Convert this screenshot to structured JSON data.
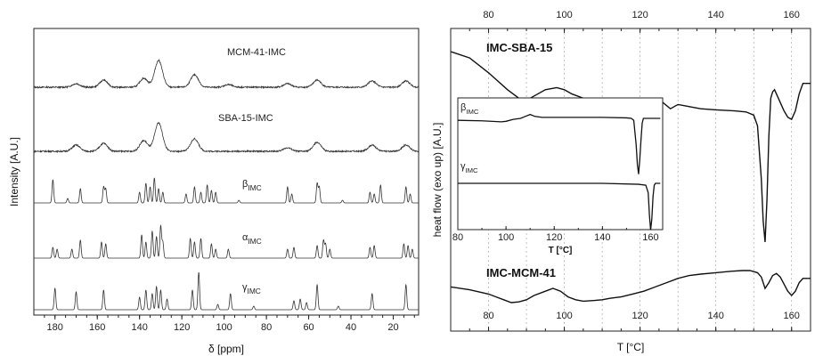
{
  "chart_data": [
    {
      "type": "line",
      "panel": "left",
      "xlabel": "δ [ppm]",
      "ylabel": "Intensity [A.U.]",
      "xlim": [
        190,
        8
      ],
      "x_reversed": true,
      "x_ticks": [
        180,
        160,
        140,
        120,
        100,
        80,
        60,
        40,
        20
      ],
      "series": [
        {
          "name": "MCM-41-IMC",
          "label_plain": true,
          "peaks": [
            [
              170,
              4
            ],
            [
              157,
              8
            ],
            [
              138,
              10
            ],
            [
              131,
              30
            ],
            [
              114,
              14
            ],
            [
              98,
              3
            ],
            [
              70,
              4
            ],
            [
              56,
              8
            ],
            [
              30,
              7
            ],
            [
              14,
              7
            ]
          ]
        },
        {
          "name": "SBA-15-IMC",
          "label_plain": true,
          "peaks": [
            [
              170,
              7
            ],
            [
              157,
              9
            ],
            [
              138,
              12
            ],
            [
              131,
              32
            ],
            [
              114,
              14
            ],
            [
              70,
              4
            ],
            [
              56,
              10
            ],
            [
              30,
              7
            ],
            [
              14,
              7
            ]
          ]
        },
        {
          "name": "β",
          "sub": "IMC",
          "peaks": [
            [
              181,
              26
            ],
            [
              174,
              5
            ],
            [
              168,
              16
            ],
            [
              157,
              18
            ],
            [
              156,
              16
            ],
            [
              140,
              12
            ],
            [
              137,
              22
            ],
            [
              135,
              18
            ],
            [
              133,
              28
            ],
            [
              131,
              16
            ],
            [
              129,
              12
            ],
            [
              118,
              10
            ],
            [
              114,
              18
            ],
            [
              111,
              12
            ],
            [
              108,
              20
            ],
            [
              106,
              14
            ],
            [
              104,
              12
            ],
            [
              93,
              3
            ],
            [
              70,
              18
            ],
            [
              68,
              10
            ],
            [
              56,
              22
            ],
            [
              55,
              18
            ],
            [
              44,
              3
            ],
            [
              31,
              12
            ],
            [
              29,
              10
            ],
            [
              26,
              20
            ],
            [
              14,
              18
            ],
            [
              12,
              10
            ]
          ]
        },
        {
          "name": "α",
          "sub": "IMC",
          "peaks": [
            [
              181,
              12
            ],
            [
              179,
              10
            ],
            [
              172,
              10
            ],
            [
              168,
              20
            ],
            [
              158,
              18
            ],
            [
              156,
              16
            ],
            [
              139,
              26
            ],
            [
              137,
              18
            ],
            [
              134,
              30
            ],
            [
              132,
              24
            ],
            [
              130,
              36
            ],
            [
              129,
              18
            ],
            [
              116,
              22
            ],
            [
              114,
              18
            ],
            [
              111,
              22
            ],
            [
              106,
              16
            ],
            [
              104,
              10
            ],
            [
              98,
              10
            ],
            [
              70,
              10
            ],
            [
              67,
              12
            ],
            [
              56,
              14
            ],
            [
              53,
              20
            ],
            [
              52,
              16
            ],
            [
              50,
              10
            ],
            [
              31,
              12
            ],
            [
              29,
              14
            ],
            [
              15,
              16
            ],
            [
              13,
              14
            ],
            [
              11,
              10
            ]
          ]
        },
        {
          "name": "γ",
          "sub": "IMC",
          "peaks": [
            [
              180,
              24
            ],
            [
              170,
              20
            ],
            [
              157,
              22
            ],
            [
              140,
              14
            ],
            [
              137,
              22
            ],
            [
              134,
              18
            ],
            [
              132,
              26
            ],
            [
              130,
              22
            ],
            [
              127,
              12
            ],
            [
              115,
              22
            ],
            [
              112,
              42
            ],
            [
              103,
              6
            ],
            [
              97,
              18
            ],
            [
              86,
              4
            ],
            [
              67,
              10
            ],
            [
              64,
              12
            ],
            [
              61,
              8
            ],
            [
              56,
              28
            ],
            [
              46,
              4
            ],
            [
              30,
              18
            ],
            [
              14,
              28
            ]
          ]
        }
      ]
    },
    {
      "type": "line",
      "panel": "right",
      "xlabel": "T [°C]",
      "ylabel": "heat flow (exo up) [A.U.]",
      "xlim": [
        70,
        165
      ],
      "x_ticks": [
        80,
        100,
        120,
        140,
        160
      ],
      "grid": "vertical dotted",
      "series": [
        {
          "name": "IMC-SBA-15",
          "x": [
            70,
            75,
            80,
            85,
            88,
            90,
            92,
            95,
            98,
            100,
            102,
            105,
            110,
            115,
            120,
            124,
            126,
            128,
            130,
            133,
            136,
            140,
            145,
            148,
            150,
            151,
            152,
            152.5,
            153,
            153.5,
            154,
            154.5,
            155,
            155.5,
            156,
            157,
            158,
            159,
            160,
            161,
            162,
            163,
            165
          ],
          "y": [
            90,
            87,
            80,
            72,
            68,
            67,
            69,
            72,
            73,
            72,
            70,
            68,
            67,
            67,
            67,
            67.5,
            66,
            63,
            65,
            64,
            63,
            62.5,
            62,
            61.5,
            60,
            55,
            30,
            10,
            0,
            20,
            50,
            68,
            71,
            72,
            70,
            66,
            62,
            59,
            58,
            62,
            70,
            75,
            75
          ]
        },
        {
          "name": "IMC-MCM-41",
          "x": [
            70,
            75,
            80,
            82,
            84,
            86,
            88,
            90,
            92,
            95,
            97,
            99,
            101,
            103,
            105,
            108,
            110,
            112,
            115,
            118,
            121,
            124,
            127,
            130,
            133,
            136,
            140,
            144,
            147,
            149,
            151,
            152,
            153,
            154,
            155,
            156,
            157,
            158,
            159,
            160,
            161,
            162,
            163,
            165
          ],
          "y": [
            48,
            46,
            43,
            41,
            39,
            37,
            37.5,
            39,
            42,
            45,
            47,
            45,
            41,
            39,
            38,
            38.5,
            39,
            40,
            41,
            43,
            45,
            48,
            51,
            54,
            56,
            57,
            58,
            59,
            59.5,
            59.5,
            58,
            55,
            47,
            51,
            56,
            57.5,
            55,
            50,
            45,
            42,
            45,
            51,
            54,
            54
          ]
        }
      ],
      "inset": {
        "xlim": [
          80,
          165
        ],
        "x_ticks": [
          80,
          100,
          120,
          140,
          160
        ],
        "xlabel": "T [°C]",
        "series": [
          {
            "name": "β",
            "sub": "IMC",
            "x": [
              80,
              90,
              98,
              100,
              103,
              106,
              108,
              110,
              112,
              115,
              120,
              130,
              140,
              150,
              152,
              153,
              154,
              154.5,
              155,
              155.5,
              156,
              156.5,
              157,
              158,
              160,
              164
            ],
            "y": [
              55,
              54.5,
              53.5,
              54,
              56,
              57,
              59,
              61,
              59,
              58,
              58,
              58,
              58,
              57.5,
              57,
              55,
              30,
              10,
              0,
              15,
              35,
              52,
              57,
              57,
              57,
              57
            ]
          },
          {
            "name": "γ",
            "sub": "IMC",
            "x": [
              80,
              100,
              120,
              140,
              155,
              158,
              159,
              159.5,
              160,
              160.5,
              161,
              161.5,
              162,
              163,
              164
            ],
            "y": [
              25,
              25,
              25,
              25,
              24.5,
              24,
              20,
              8,
              0,
              6,
              18,
              24,
              25,
              25,
              25
            ]
          }
        ]
      }
    }
  ]
}
